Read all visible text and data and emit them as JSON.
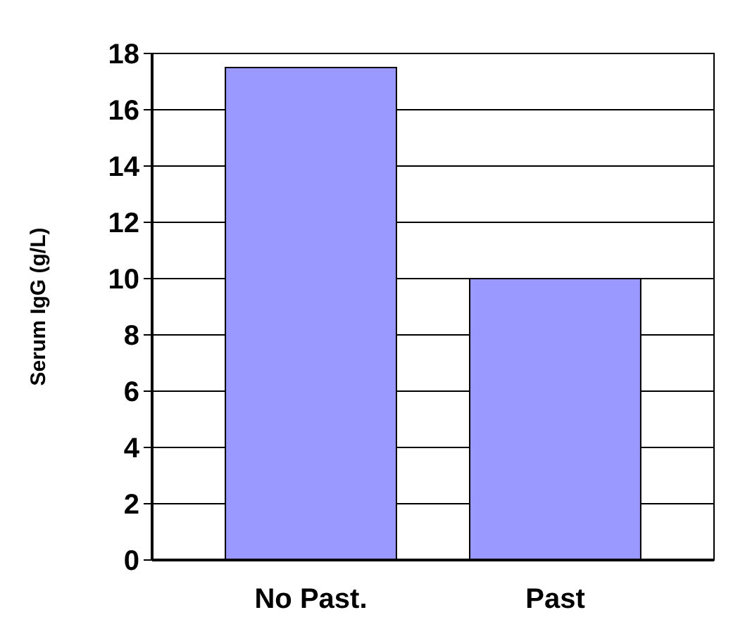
{
  "chart_data": {
    "type": "bar",
    "ylabel": "Serum IgG (g/L)",
    "categories": [
      "No Past.",
      "Past"
    ],
    "values": [
      17.5,
      10
    ],
    "color": "#9999ff",
    "ylim": [
      0,
      18
    ],
    "yticks": [
      0,
      2,
      4,
      6,
      8,
      10,
      12,
      14,
      16,
      18
    ],
    "grid": "y"
  }
}
